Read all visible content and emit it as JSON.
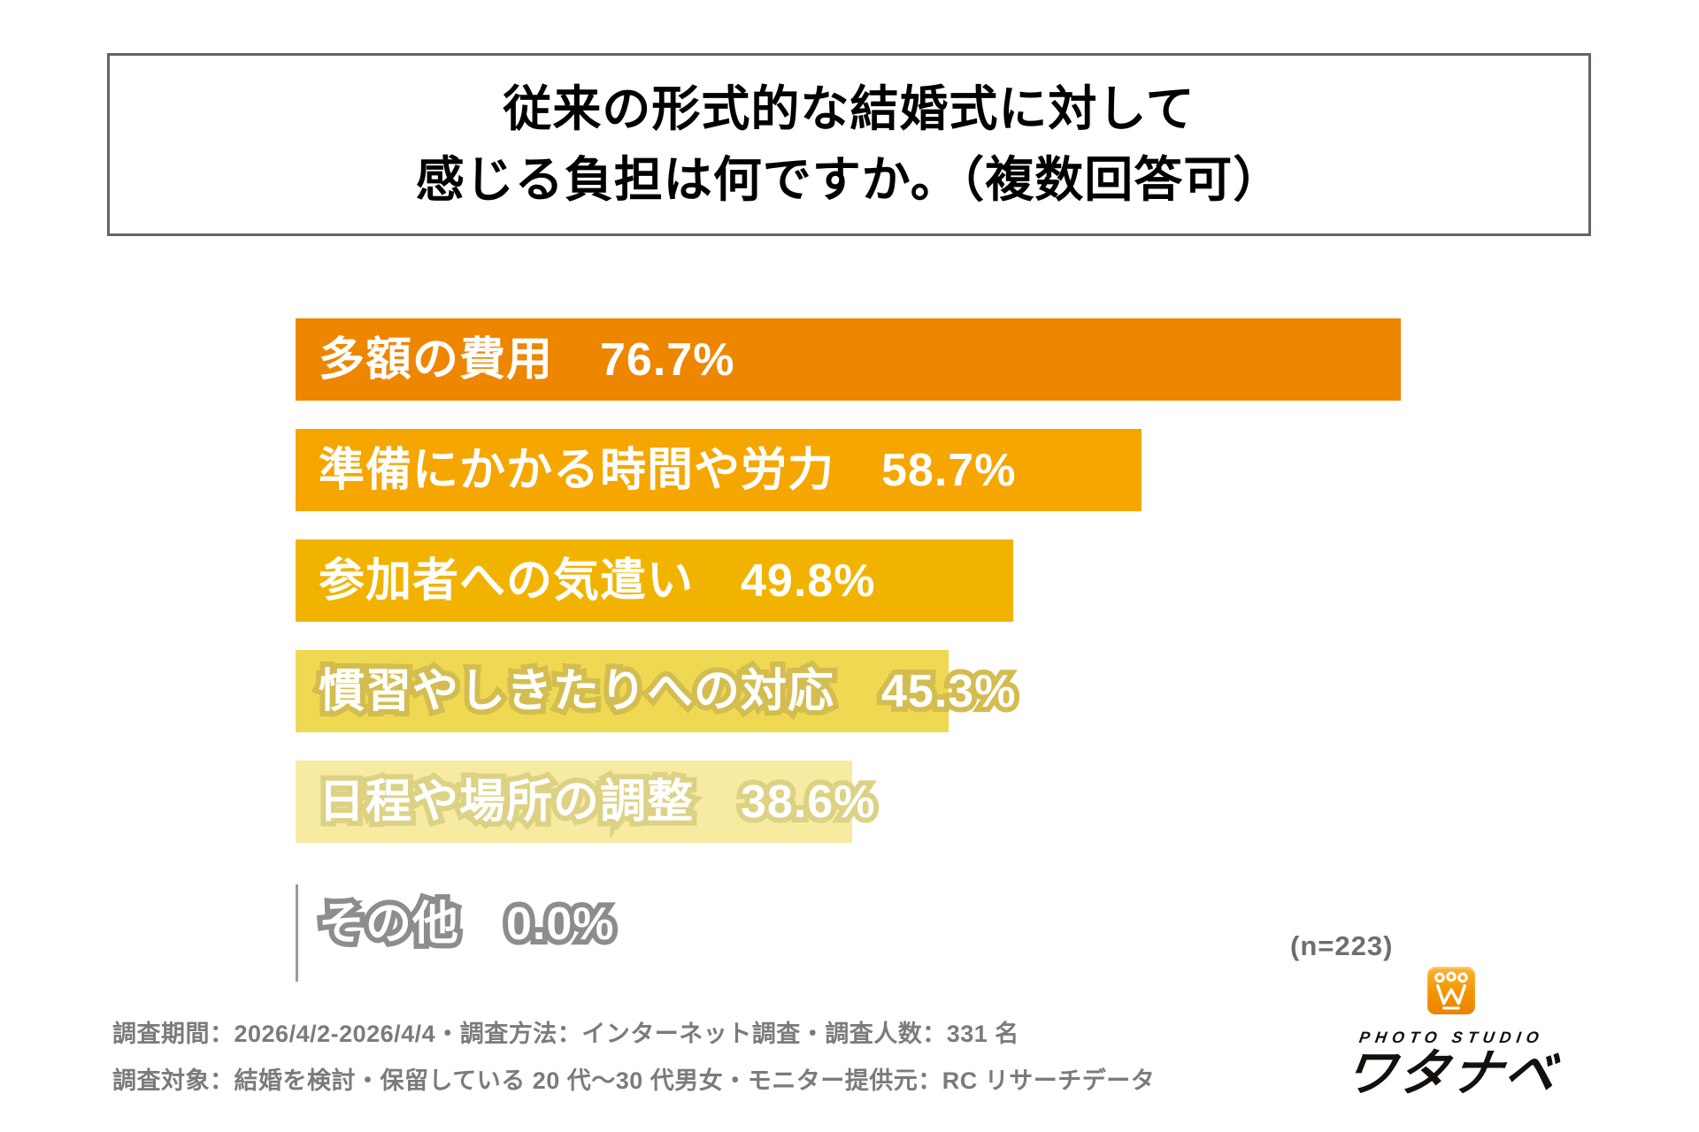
{
  "title": {
    "line1": "従来の形式的な結婚式に対して",
    "line2": "感じる負担は何ですか。（複数回答可）"
  },
  "chart_data": {
    "type": "bar",
    "orientation": "horizontal",
    "unit": "%",
    "categories": [
      "多額の費用",
      "準備にかかる時間や労力",
      "参加者への気遣い",
      "慣習やしきたりへの対応",
      "日程や場所の調整",
      "その他"
    ],
    "values": [
      76.7,
      58.7,
      49.8,
      45.3,
      38.6,
      0.0
    ],
    "value_labels": [
      "76.7%",
      "58.7%",
      "49.8%",
      "45.3%",
      "38.6%",
      "0.0%"
    ],
    "bar_colors": [
      "#ee8600",
      "#f5a600",
      "#f2b300",
      "#efd952",
      "#f6eba1",
      null
    ],
    "label_fill_color": "#ffffff",
    "label_stroke_colors": [
      null,
      null,
      null,
      "#d3bd50",
      "#ddd184",
      "#8d8d8d"
    ],
    "sample_note": "(n=223)",
    "legend": "none",
    "grid": "off"
  },
  "footer": {
    "line1": "調査期間：2026/4/2-2026/4/4・調査方法：インターネット調査・調査人数：331 名",
    "line2": "調査対象：結婚を検討・保留している 20 代～30 代男女・モニター提供元：RC リサーチデータ"
  },
  "logo": {
    "brand_top": "PHOTO STUDIO",
    "brand_name": "ワタナベ",
    "icon": "crown-w-icon",
    "icon_color_top": "#f9b435",
    "icon_color_bottom": "#ec8200"
  }
}
